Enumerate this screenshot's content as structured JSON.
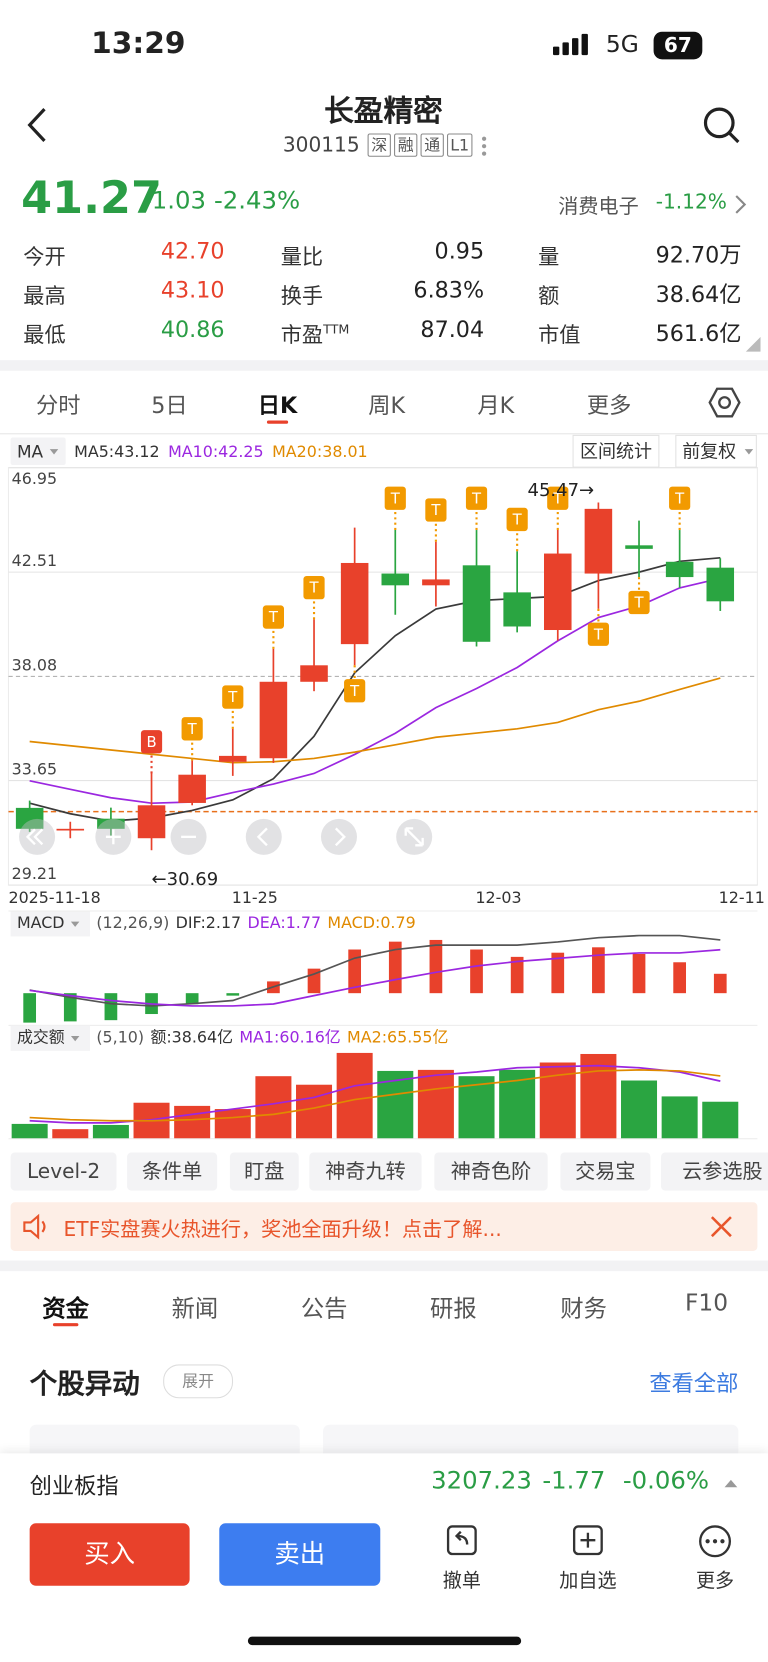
{
  "status": {
    "time": "13:29",
    "network": "5G",
    "battery": "67"
  },
  "header": {
    "title": "长盈精密",
    "code": "300115",
    "tags": [
      "深",
      "融",
      "通",
      "L1"
    ]
  },
  "quote": {
    "price": "41.27",
    "change": "-1.03",
    "change_pct": "-2.43%",
    "sector": "消费电子",
    "sector_pct": "-1.12%"
  },
  "stats": [
    [
      {
        "label": "今开",
        "value": "42.70",
        "color": "#e8412b"
      },
      {
        "label": "量比",
        "value": "0.95",
        "color": "#222222"
      },
      {
        "label": "量",
        "value": "92.70万",
        "color": "#222222"
      }
    ],
    [
      {
        "label": "最高",
        "value": "43.10",
        "color": "#e8412b"
      },
      {
        "label": "换手",
        "value": "6.83%",
        "color": "#222222"
      },
      {
        "label": "额",
        "value": "38.64亿",
        "color": "#222222"
      }
    ],
    [
      {
        "label": "最低",
        "value": "40.86",
        "color": "#2a9d45"
      },
      {
        "label": "市盈",
        "label_sup": "TTM",
        "value": "87.04",
        "color": "#222222"
      },
      {
        "label": "市值",
        "value": "561.6亿",
        "color": "#222222"
      }
    ]
  ],
  "chart_tabs": {
    "items": [
      "分时",
      "5日",
      "日K",
      "周K",
      "月K",
      "更多"
    ],
    "active": 2
  },
  "chart_data": {
    "type": "candlestick",
    "indicator": "MA",
    "buttons": [
      "区间统计",
      "前复权"
    ],
    "categories": [
      "2025-11-18",
      null,
      null,
      null,
      null,
      "11-25",
      null,
      null,
      null,
      null,
      null,
      "12-03",
      null,
      null,
      null,
      null,
      null,
      "12-11"
    ],
    "candles": [
      {
        "open": 32.49,
        "high": 32.8,
        "low": 31.47,
        "close": 31.6
      },
      {
        "open": 31.55,
        "high": 31.9,
        "low": 31.2,
        "close": 31.6
      },
      {
        "open": 32.03,
        "high": 32.5,
        "low": 31.25,
        "close": 31.6
      },
      {
        "open": 31.2,
        "high": 33.95,
        "low": 30.69,
        "close": 32.6
      },
      {
        "open": 32.7,
        "high": 34.5,
        "low": 32.6,
        "close": 33.9
      },
      {
        "open": 34.45,
        "high": 35.85,
        "low": 33.85,
        "close": 34.7
      },
      {
        "open": 34.6,
        "high": 39.25,
        "low": 34.4,
        "close": 37.85
      },
      {
        "open": 37.85,
        "high": 40.5,
        "low": 37.45,
        "close": 38.55
      },
      {
        "open": 39.45,
        "high": 44.4,
        "low": 38.55,
        "close": 42.9
      },
      {
        "open": 42.45,
        "high": 44.3,
        "low": 40.7,
        "close": 41.95
      },
      {
        "open": 41.95,
        "high": 43.8,
        "low": 41.05,
        "close": 42.2
      },
      {
        "open": 42.8,
        "high": 44.3,
        "low": 39.35,
        "close": 39.55
      },
      {
        "open": 41.65,
        "high": 43.4,
        "low": 39.95,
        "close": 40.2
      },
      {
        "open": 40.05,
        "high": 44.3,
        "low": 39.6,
        "close": 43.3
      },
      {
        "open": 42.45,
        "high": 45.47,
        "low": 40.95,
        "close": 45.2
      },
      {
        "open": 43.65,
        "high": 44.7,
        "low": 42.3,
        "close": 43.5
      },
      {
        "open": 42.95,
        "high": 44.3,
        "low": 41.85,
        "close": 42.3
      },
      {
        "open": 42.7,
        "high": 43.1,
        "low": 40.86,
        "close": 41.27
      }
    ],
    "up_color": "#e8412b",
    "down_color": "#2aa541",
    "ylim": [
      29.21,
      46.95
    ],
    "yticks": [
      46.95,
      42.51,
      38.08,
      33.65,
      29.21
    ],
    "reference_line": 32.33,
    "reference_color": "#e8701b",
    "signals": [
      null,
      null,
      null,
      "B",
      "T",
      "T",
      "T",
      "T",
      "T",
      "T",
      "T",
      "T",
      "T",
      "T",
      "T",
      "T",
      "T",
      null
    ],
    "low_label": "←30.69",
    "high_label": "45.47→",
    "series": [
      {
        "name": "MA5:43.12",
        "color": "#3a3a3a",
        "values": [
          32.69,
          32.24,
          31.93,
          32.06,
          32.38,
          32.83,
          33.73,
          35.53,
          38.23,
          39.81,
          40.94,
          41.3,
          41.39,
          41.48,
          42.15,
          42.51,
          42.97,
          43.12
        ]
      },
      {
        "name": "MA10:42.25",
        "color": "#9b27e0",
        "values": [
          33.64,
          33.28,
          32.92,
          32.69,
          32.74,
          33.14,
          33.5,
          33.95,
          34.76,
          35.66,
          36.75,
          37.56,
          38.46,
          39.59,
          40.58,
          41.07,
          41.84,
          42.25
        ]
      },
      {
        "name": "MA20:38.01",
        "color": "#e08a00",
        "values": [
          35.31,
          35.13,
          34.95,
          34.77,
          34.59,
          34.41,
          34.45,
          34.59,
          34.86,
          35.17,
          35.49,
          35.67,
          35.85,
          36.12,
          36.66,
          37.02,
          37.52,
          38.01
        ]
      }
    ],
    "macd": {
      "title": "MACD",
      "params": "(12,26,9)",
      "ylim": [
        -1.4,
        2.4
      ],
      "histogram_label": "MACD:0.79",
      "histogram_color": "#e08a00",
      "histogram": [
        -1.2,
        -1.15,
        -1.1,
        -0.85,
        -0.45,
        -0.1,
        0.48,
        1.0,
        1.78,
        2.1,
        2.17,
        1.78,
        1.48,
        1.65,
        1.87,
        1.6,
        1.26,
        0.79
      ],
      "series": [
        {
          "name": "DIF:2.17",
          "color": "#555555",
          "values": [
            0.13,
            -0.17,
            -0.43,
            -0.52,
            -0.43,
            -0.3,
            0.26,
            0.78,
            1.43,
            1.78,
            1.96,
            1.96,
            1.96,
            2.09,
            2.26,
            2.35,
            2.35,
            2.17
          ]
        },
        {
          "name": "DEA:1.77",
          "color": "#9b27e0",
          "values": [
            0.11,
            -0.1,
            -0.3,
            -0.44,
            -0.52,
            -0.52,
            -0.44,
            -0.1,
            0.24,
            0.55,
            0.85,
            1.11,
            1.29,
            1.42,
            1.55,
            1.64,
            1.64,
            1.77
          ]
        }
      ]
    },
    "volume": {
      "title": "成交额",
      "params": "(5,10)",
      "label": "额:38.64亿",
      "ylim": [
        0,
        94
      ],
      "values": [
        15.5,
        10,
        14.4,
        37.6,
        34.3,
        31,
        65.3,
        56.4,
        89.6,
        70.8,
        71.9,
        65.3,
        71.9,
        79.6,
        88.5,
        60.8,
        44.2,
        38.64
      ],
      "series": [
        {
          "name": "MA1:60.16亿",
          "color": "#9b27e0",
          "values": [
            18.8,
            16.6,
            16.6,
            19.9,
            25.4,
            31.0,
            36.5,
            43.1,
            55.3,
            60.8,
            66.4,
            69.7,
            74.1,
            75.2,
            76.3,
            74.1,
            69.7,
            60.16
          ]
        },
        {
          "name": "MA2:65.55亿",
          "color": "#e08a00",
          "values": [
            22.1,
            19.9,
            18.8,
            18.8,
            19.9,
            22.1,
            25.4,
            32.1,
            40.9,
            46.5,
            52.0,
            56.4,
            60.8,
            66.4,
            70.8,
            71.9,
            70.8,
            65.55
          ]
        }
      ]
    }
  },
  "tools": [
    "Level-2",
    "条件单",
    "盯盘",
    "神奇九转",
    "神奇色阶",
    "交易宝",
    "云参选股"
  ],
  "banner": "ETF实盘赛火热进行，奖池全面升级！点击了解...",
  "info_tabs": {
    "items": [
      "资金",
      "新闻",
      "公告",
      "研报",
      "财务",
      "F10"
    ],
    "active": 0
  },
  "section": {
    "title": "个股异动",
    "expand": "展开",
    "more": "查看全部"
  },
  "index_bar": {
    "name": "创业板指",
    "value": "3207.23",
    "change": "-1.77",
    "change_pct": "-0.06%"
  },
  "actions": {
    "buy": "买入",
    "sell": "卖出",
    "items": [
      "撤单",
      "加自选",
      "更多"
    ]
  }
}
